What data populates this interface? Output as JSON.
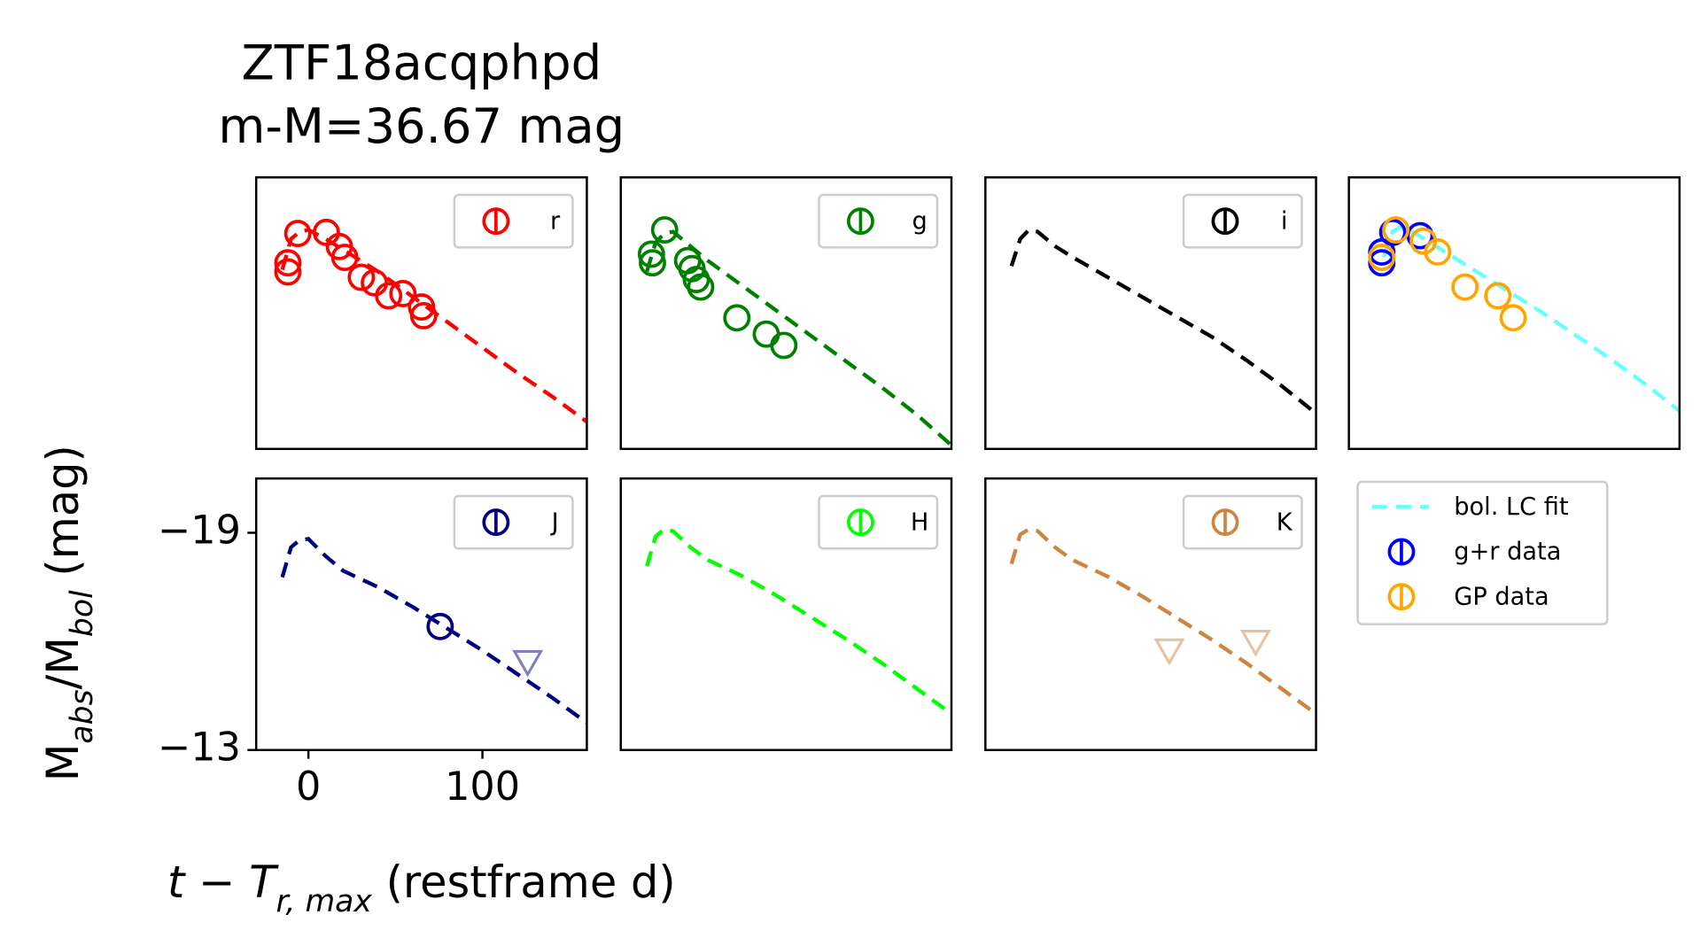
{
  "chart_data": {
    "type": "line",
    "title": "ZTF18acqphpd",
    "subtitle": "m-M=36.67 mag",
    "xlabel": [
      "t − T",
      "r, max",
      " (restframe d)"
    ],
    "ylabel": [
      "M",
      "abs",
      "/M",
      "bol",
      " (mag)"
    ],
    "xlim": [
      -30,
      160
    ],
    "ylim": [
      -13,
      -20.5
    ],
    "xticks": [
      0,
      100
    ],
    "yticks": [
      {
        "value": -19,
        "label": "−19"
      },
      {
        "value": -13,
        "label": "−13"
      }
    ],
    "panels": [
      {
        "band": "r",
        "color": "#ff0000",
        "series": [
          {
            "style": "fit",
            "color": "#ff0000",
            "x": [
              -15,
              -10,
              -5,
              0,
              10,
              20,
              40,
              60,
              80,
              100,
              120,
              140,
              160
            ],
            "values": [
              -17.95,
              -18.8,
              -19.0,
              -19.05,
              -18.8,
              -18.5,
              -17.9,
              -17.2,
              -16.5,
              -15.8,
              -15.1,
              -14.45,
              -13.75
            ]
          },
          {
            "style": "circle",
            "color": "#ff0000",
            "x": [
              -11.8,
              -11.8,
              -6.1,
              10.3,
              17.8,
              20.9,
              30.4,
              37.9,
              46.1,
              54.3,
              65.0,
              66.2
            ],
            "values": [
              -18.14,
              -17.89,
              -18.95,
              -18.98,
              -18.59,
              -18.29,
              -17.74,
              -17.59,
              -17.23,
              -17.29,
              -16.92,
              -16.68
            ]
          }
        ]
      },
      {
        "band": "g",
        "color": "#008000",
        "series": [
          {
            "style": "fit",
            "color": "#008000",
            "x": [
              -15,
              -10,
              -5,
              0,
              10,
              20,
              40,
              60,
              80,
              100,
              120,
              140,
              160
            ],
            "values": [
              -17.9,
              -18.7,
              -18.95,
              -19.0,
              -18.6,
              -18.2,
              -17.5,
              -16.8,
              -16.1,
              -15.4,
              -14.7,
              -13.95,
              -13.1
            ]
          },
          {
            "style": "circle",
            "color": "#008000",
            "x": [
              -12.4,
              -11.8,
              -4.8,
              8.4,
              10.9,
              13.4,
              15.9,
              36.7,
              53.6,
              63.7
            ],
            "values": [
              -18.38,
              -18.14,
              -19.05,
              -18.2,
              -17.98,
              -17.68,
              -17.47,
              -16.62,
              -16.17,
              -15.86
            ]
          }
        ]
      },
      {
        "band": "i",
        "color": "#000000",
        "series": [
          {
            "style": "fit",
            "color": "#000000",
            "x": [
              -15,
              -10,
              -5,
              0,
              10,
              20,
              40,
              60,
              80,
              100,
              120,
              140,
              160
            ],
            "values": [
              -18.05,
              -18.8,
              -19.05,
              -19.0,
              -18.6,
              -18.3,
              -17.75,
              -17.2,
              -16.65,
              -16.1,
              -15.45,
              -14.75,
              -13.98
            ]
          }
        ]
      },
      {
        "legend": "below",
        "series": [
          {
            "name": "bol. LC fit",
            "style": "fit",
            "color": "#66ffff",
            "x": [
              -10,
              -5,
              0,
              10,
              20,
              40,
              60,
              80,
              100,
              120,
              140,
              160
            ],
            "values": [
              -18.3,
              -19.0,
              -19.14,
              -18.9,
              -18.6,
              -18.0,
              -17.4,
              -16.8,
              -16.15,
              -15.5,
              -14.8,
              -14.05
            ]
          },
          {
            "name": "g+r data",
            "style": "circle",
            "color": "#0000ff",
            "x": [
              -11.1,
              -11.1,
              -4.8,
              10.9
            ],
            "values": [
              -18.14,
              -18.44,
              -18.98,
              -18.89
            ]
          },
          {
            "name": "GP data",
            "style": "circle",
            "color": "#ffa500",
            "x": [
              -11.1,
              -3.0,
              12.8,
              21.0,
              36.7,
              55.6,
              64.4
            ],
            "values": [
              -18.29,
              -19.05,
              -18.74,
              -18.44,
              -17.47,
              -17.23,
              -16.62
            ]
          }
        ]
      },
      {
        "band": "J",
        "color": "#000080",
        "axes": true,
        "series": [
          {
            "style": "fit",
            "color": "#000080",
            "x": [
              -15,
              -10,
              -5,
              0,
              10,
              20,
              40,
              60,
              80,
              100,
              120,
              140,
              160
            ],
            "values": [
              -17.77,
              -18.6,
              -18.8,
              -18.83,
              -18.35,
              -17.95,
              -17.5,
              -16.95,
              -16.35,
              -15.75,
              -15.1,
              -14.45,
              -13.75
            ]
          },
          {
            "style": "circle",
            "color": "#000080",
            "x": [
              75.7
            ],
            "values": [
              -16.41
            ]
          },
          {
            "style": "triangle",
            "color": "#8080c0",
            "x": [
              126.0
            ],
            "values": [
              -15.45
            ]
          }
        ]
      },
      {
        "band": "H",
        "color": "#00ff00",
        "series": [
          {
            "style": "fit",
            "color": "#00ff00",
            "x": [
              -15,
              -10,
              -5,
              0,
              10,
              20,
              40,
              60,
              80,
              100,
              120,
              140,
              160
            ],
            "values": [
              -18.08,
              -18.9,
              -19.1,
              -19.05,
              -18.6,
              -18.25,
              -17.8,
              -17.25,
              -16.65,
              -16.05,
              -15.4,
              -14.7,
              -14.0
            ]
          }
        ]
      },
      {
        "band": "K",
        "color": "#cd853f",
        "series": [
          {
            "style": "fit",
            "color": "#cd853f",
            "x": [
              -15,
              -10,
              -5,
              0,
              10,
              20,
              40,
              60,
              80,
              100,
              120,
              140,
              160
            ],
            "values": [
              -18.14,
              -18.95,
              -19.1,
              -19.05,
              -18.6,
              -18.25,
              -17.8,
              -17.25,
              -16.65,
              -16.05,
              -15.4,
              -14.7,
              -14.0
            ]
          },
          {
            "style": "triangle",
            "color": "#e6c29f",
            "x": [
              75.7,
              125.3
            ],
            "values": [
              -15.77,
              -16.01
            ]
          }
        ]
      }
    ]
  }
}
